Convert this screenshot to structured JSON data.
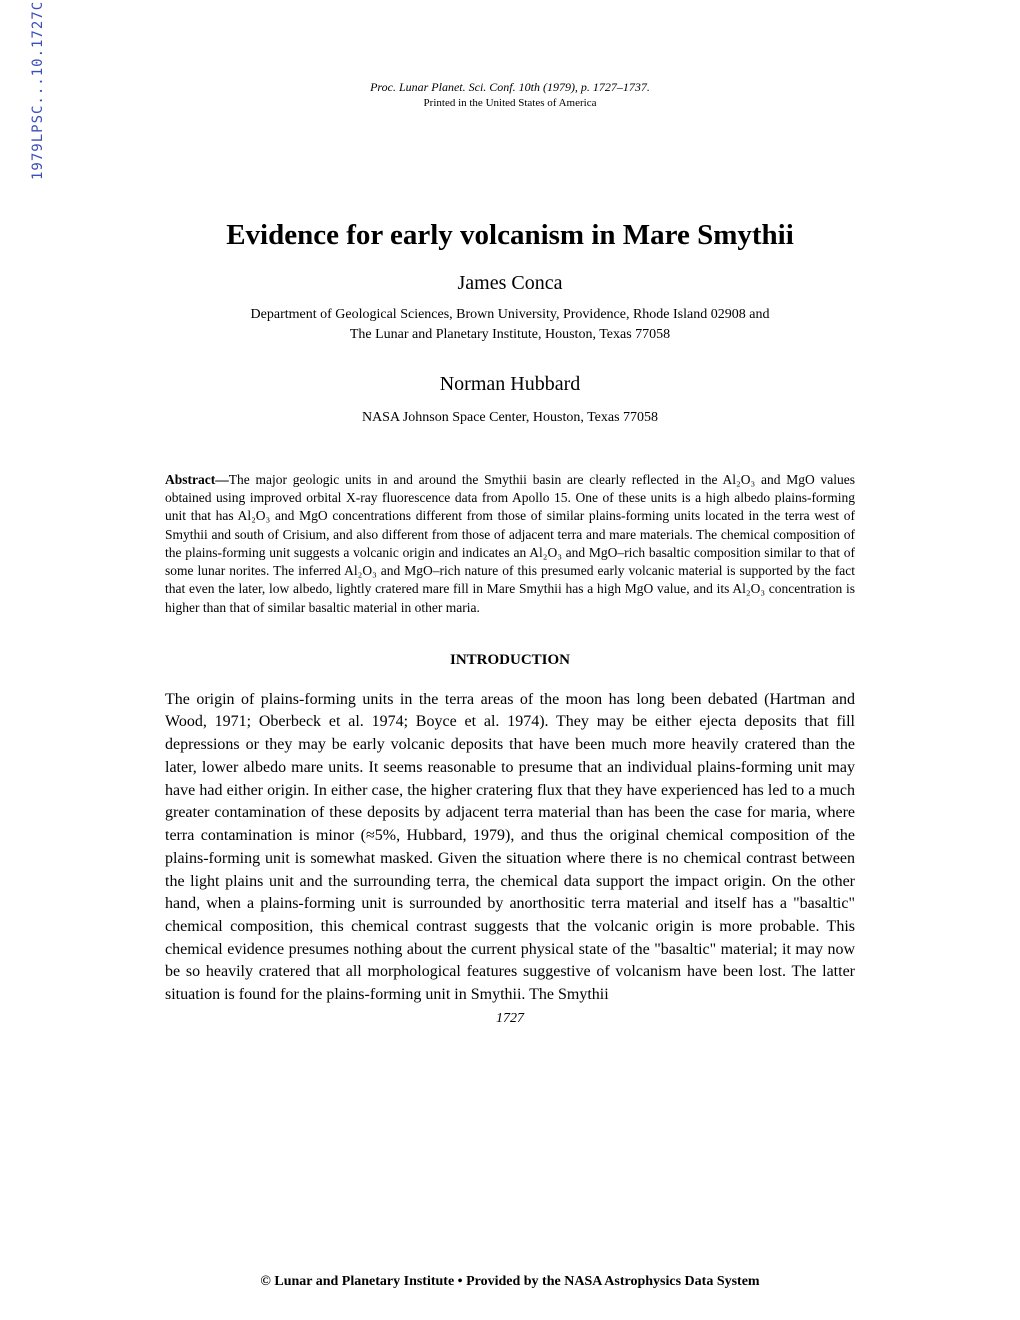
{
  "sidebar": {
    "label": "1979LPSC...10.1727C"
  },
  "header": {
    "citation": "Proc. Lunar Planet. Sci. Conf. 10th (1979), p. 1727–1737.",
    "printed": "Printed in the United States of America"
  },
  "title": "Evidence for early volcanism in Mare Smythii",
  "authors": {
    "author1": "James Conca",
    "affiliation1_line1": "Department of Geological Sciences, Brown University, Providence, Rhode Island 02908 and",
    "affiliation1_line2": "The Lunar and Planetary Institute, Houston, Texas 77058",
    "author2": "Norman Hubbard",
    "affiliation2": "NASA Johnson Space Center, Houston, Texas 77058"
  },
  "abstract": {
    "label": "Abstract—",
    "text": "The major geologic units in and around the Smythii basin are clearly reflected in the Al₂O₃ and MgO values obtained using improved orbital X-ray fluorescence data from Apollo 15. One of these units is a high albedo plains-forming unit that has Al₂O₃ and MgO concentrations different from those of similar plains-forming units located in the terra west of Smythii and south of Crisium, and also different from those of adjacent terra and mare materials. The chemical composition of the plains-forming unit suggests a volcanic origin and indicates an Al₂O₃ and MgO–rich basaltic composition similar to that of some lunar norites. The inferred Al₂O₃ and MgO–rich nature of this presumed early volcanic material is supported by the fact that even the later, low albedo, lightly cratered mare fill in Mare Smythii has a high MgO value, and its Al₂O₃ concentration is higher than that of similar basaltic material in other maria."
  },
  "section_heading": "INTRODUCTION",
  "body": "The origin of plains-forming units in the terra areas of the moon has long been debated (Hartman and Wood, 1971; Oberbeck et al. 1974; Boyce et al. 1974). They may be either ejecta deposits that fill depressions or they may be early volcanic deposits that have been much more heavily cratered than the later, lower albedo mare units. It seems reasonable to presume that an individual plains-forming unit may have had either origin. In either case, the higher cratering flux that they have experienced has led to a much greater contamination of these deposits by adjacent terra material than has been the case for maria, where terra contamination is minor (≈5%, Hubbard, 1979), and thus the original chemical composition of the plains-forming unit is somewhat masked. Given the situation where there is no chemical contrast between the light plains unit and the surrounding terra, the chemical data support the impact origin. On the other hand, when a plains-forming unit is surrounded by anorthositic terra material and itself has a \"basaltic\" chemical composition, this chemical contrast suggests that the volcanic origin is more probable. This chemical evidence presumes nothing about the current physical state of the \"basaltic\" material; it may now be so heavily cratered that all morphological features suggestive of volcanism have been lost. The latter situation is found for the plains-forming unit in Smythii. The Smythii",
  "page_number": "1727",
  "footer": "© Lunar and Planetary Institute • Provided by the NASA Astrophysics Data System",
  "colors": {
    "sidebar_color": "#3a4db8",
    "text_color": "#000000",
    "background": "#ffffff"
  },
  "typography": {
    "body_font": "Times New Roman",
    "title_size_pt": 22,
    "author_size_pt": 15,
    "body_size_pt": 12,
    "abstract_size_pt": 10
  }
}
